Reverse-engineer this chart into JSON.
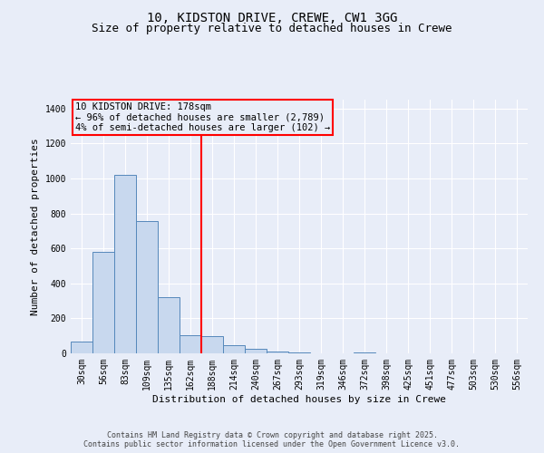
{
  "title1": "10, KIDSTON DRIVE, CREWE, CW1 3GG",
  "title2": "Size of property relative to detached houses in Crewe",
  "xlabel": "Distribution of detached houses by size in Crewe",
  "ylabel": "Number of detached properties",
  "bar_color": "#c8d8ee",
  "bar_edge_color": "#5588bb",
  "background_color": "#e8edf8",
  "grid_color": "#ffffff",
  "categories": [
    "30sqm",
    "56sqm",
    "83sqm",
    "109sqm",
    "135sqm",
    "162sqm",
    "188sqm",
    "214sqm",
    "240sqm",
    "267sqm",
    "293sqm",
    "319sqm",
    "346sqm",
    "372sqm",
    "398sqm",
    "425sqm",
    "451sqm",
    "477sqm",
    "503sqm",
    "530sqm",
    "556sqm"
  ],
  "values": [
    68,
    578,
    1020,
    758,
    320,
    102,
    100,
    45,
    28,
    10,
    5,
    0,
    0,
    3,
    0,
    0,
    0,
    0,
    0,
    0,
    0
  ],
  "ylim": [
    0,
    1450
  ],
  "yticks": [
    0,
    200,
    400,
    600,
    800,
    1000,
    1200,
    1400
  ],
  "red_line_index": 6,
  "annotation_text": "10 KIDSTON DRIVE: 178sqm\n← 96% of detached houses are smaller (2,789)\n4% of semi-detached houses are larger (102) →",
  "footer_text": "Contains HM Land Registry data © Crown copyright and database right 2025.\nContains public sector information licensed under the Open Government Licence v3.0.",
  "title1_fontsize": 10,
  "title2_fontsize": 9,
  "xlabel_fontsize": 8,
  "ylabel_fontsize": 8,
  "tick_fontsize": 7,
  "annotation_fontsize": 7.5,
  "footer_fontsize": 6
}
